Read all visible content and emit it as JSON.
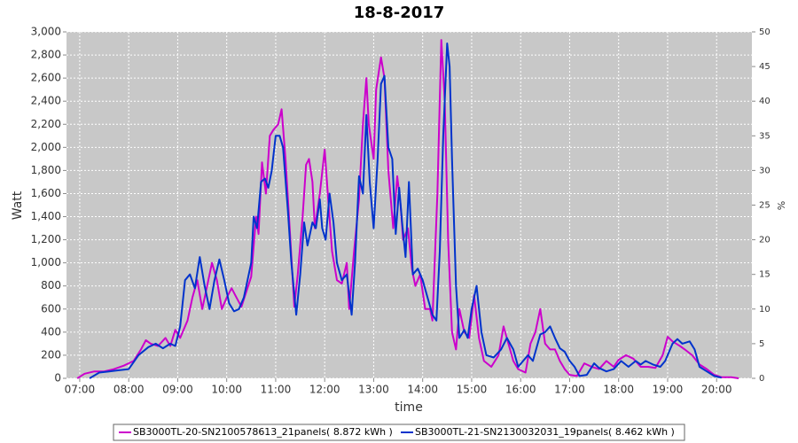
{
  "chart_data": {
    "type": "line",
    "title": "18-8-2017",
    "x_label": "time",
    "y_label": "Watt",
    "y2_label": "%",
    "xlim": [
      6.73,
      20.72
    ],
    "xticks": [
      {
        "value": 7,
        "label": "07:00"
      },
      {
        "value": 8,
        "label": "08:00"
      },
      {
        "value": 9,
        "label": "09:00"
      },
      {
        "value": 10,
        "label": "10:00"
      },
      {
        "value": 11,
        "label": "11:00"
      },
      {
        "value": 12,
        "label": "12:00"
      },
      {
        "value": 13,
        "label": "13:00"
      },
      {
        "value": 14,
        "label": "14:00"
      },
      {
        "value": 15,
        "label": "15:00"
      },
      {
        "value": 16,
        "label": "16:00"
      },
      {
        "value": 17,
        "label": "17:00"
      },
      {
        "value": 18,
        "label": "18:00"
      },
      {
        "value": 19,
        "label": "19:00"
      },
      {
        "value": 20,
        "label": "20:00"
      }
    ],
    "ylim": [
      0,
      3000
    ],
    "yticks": [
      0,
      200,
      400,
      600,
      800,
      {
        "value": 1000,
        "label": "1,000"
      },
      {
        "value": 1200,
        "label": "1,200"
      },
      {
        "value": 1400,
        "label": "1,400"
      },
      {
        "value": 1600,
        "label": "1,600"
      },
      {
        "value": 1800,
        "label": "1,800"
      },
      {
        "value": 2000,
        "label": "2,000"
      },
      {
        "value": 2200,
        "label": "2,200"
      },
      {
        "value": 2400,
        "label": "2,400"
      },
      {
        "value": 2600,
        "label": "2,600"
      },
      {
        "value": 2800,
        "label": "2,800"
      },
      {
        "value": 3000,
        "label": "3,000"
      }
    ],
    "y2lim": [
      0,
      50
    ],
    "y2ticks": [
      0,
      5,
      10,
      15,
      20,
      25,
      30,
      35,
      40,
      45,
      50
    ],
    "grid": true,
    "series": [
      {
        "name": "SB3000TL-20-SN2100578613_21panels( 8.872 kWh )",
        "color": "#cc00cc",
        "x": [
          6.95,
          7.1,
          7.3,
          7.5,
          7.7,
          7.9,
          8.1,
          8.25,
          8.35,
          8.45,
          8.6,
          8.75,
          8.85,
          8.95,
          9.05,
          9.2,
          9.3,
          9.4,
          9.5,
          9.6,
          9.7,
          9.8,
          9.9,
          10.0,
          10.1,
          10.2,
          10.3,
          10.4,
          10.5,
          10.6,
          10.65,
          10.72,
          10.8,
          10.88,
          10.95,
          11.05,
          11.12,
          11.2,
          11.3,
          11.38,
          11.45,
          11.55,
          11.62,
          11.68,
          11.75,
          11.8,
          11.9,
          12.0,
          12.08,
          12.15,
          12.25,
          12.35,
          12.45,
          12.5,
          12.6,
          12.7,
          12.78,
          12.85,
          12.9,
          13.0,
          13.05,
          13.15,
          13.22,
          13.3,
          13.4,
          13.48,
          13.55,
          13.6,
          13.7,
          13.78,
          13.85,
          13.95,
          14.05,
          14.15,
          14.2,
          14.3,
          14.38,
          14.45,
          14.52,
          14.6,
          14.68,
          14.75,
          14.85,
          14.95,
          15.05,
          15.15,
          15.25,
          15.4,
          15.55,
          15.65,
          15.75,
          15.85,
          15.95,
          16.1,
          16.2,
          16.3,
          16.4,
          16.5,
          16.6,
          16.7,
          16.8,
          16.9,
          17.0,
          17.15,
          17.3,
          17.45,
          17.6,
          17.75,
          17.9,
          18.0,
          18.15,
          18.3,
          18.45,
          18.6,
          18.75,
          18.9,
          19.0,
          19.1,
          19.25,
          19.35,
          19.5,
          19.65,
          19.8,
          19.95,
          20.1,
          20.3,
          20.45
        ],
        "values": [
          0,
          40,
          60,
          60,
          80,
          110,
          150,
          250,
          330,
          300,
          280,
          350,
          280,
          420,
          350,
          500,
          700,
          850,
          600,
          800,
          1000,
          850,
          600,
          700,
          780,
          700,
          620,
          750,
          880,
          1400,
          1250,
          1870,
          1600,
          2100,
          2150,
          2200,
          2330,
          1900,
          1200,
          620,
          900,
          1400,
          1850,
          1900,
          1700,
          1300,
          1600,
          1980,
          1500,
          1100,
          850,
          820,
          1000,
          600,
          1100,
          1550,
          2200,
          2600,
          2200,
          1900,
          2500,
          2780,
          2600,
          1800,
          1300,
          1750,
          1500,
          1200,
          1300,
          950,
          800,
          900,
          600,
          600,
          500,
          1600,
          2930,
          2400,
          1200,
          400,
          250,
          600,
          400,
          350,
          720,
          350,
          150,
          100,
          200,
          450,
          300,
          150,
          80,
          50,
          300,
          400,
          600,
          300,
          250,
          250,
          150,
          80,
          30,
          20,
          130,
          100,
          80,
          150,
          100,
          160,
          200,
          170,
          100,
          100,
          90,
          200,
          360,
          320,
          280,
          250,
          200,
          120,
          80,
          30,
          10,
          10,
          0
        ]
      },
      {
        "name": "SB3000TL-21-SN2130032031_19panels( 8.462 kWh )",
        "color": "#0033cc",
        "x": [
          7.2,
          7.4,
          7.6,
          7.8,
          8.0,
          8.2,
          8.4,
          8.55,
          8.7,
          8.85,
          8.95,
          9.05,
          9.15,
          9.25,
          9.35,
          9.45,
          9.55,
          9.65,
          9.75,
          9.85,
          9.95,
          10.05,
          10.15,
          10.25,
          10.35,
          10.5,
          10.55,
          10.62,
          10.7,
          10.78,
          10.85,
          10.92,
          11.0,
          11.08,
          11.15,
          11.25,
          11.32,
          11.42,
          11.5,
          11.58,
          11.65,
          11.75,
          11.82,
          11.9,
          11.95,
          12.02,
          12.1,
          12.18,
          12.25,
          12.35,
          12.45,
          12.55,
          12.62,
          12.7,
          12.78,
          12.85,
          12.92,
          13.0,
          13.08,
          13.15,
          13.22,
          13.3,
          13.38,
          13.45,
          13.52,
          13.58,
          13.65,
          13.72,
          13.8,
          13.9,
          14.0,
          14.1,
          14.2,
          14.28,
          14.35,
          14.42,
          14.5,
          14.55,
          14.6,
          14.68,
          14.75,
          14.85,
          14.92,
          15.0,
          15.1,
          15.2,
          15.3,
          15.45,
          15.6,
          15.72,
          15.85,
          15.95,
          16.05,
          16.15,
          16.25,
          16.4,
          16.5,
          16.6,
          16.7,
          16.8,
          16.9,
          17.0,
          17.1,
          17.2,
          17.35,
          17.5,
          17.6,
          17.75,
          17.9,
          18.05,
          18.2,
          18.35,
          18.45,
          18.55,
          18.7,
          18.85,
          18.95,
          19.1,
          19.2,
          19.3,
          19.45,
          19.55,
          19.65,
          19.8,
          19.95,
          20.1
        ],
        "values": [
          0,
          50,
          60,
          70,
          80,
          200,
          270,
          300,
          260,
          300,
          280,
          450,
          850,
          900,
          780,
          1050,
          800,
          600,
          850,
          1030,
          850,
          650,
          580,
          600,
          700,
          1000,
          1400,
          1300,
          1700,
          1730,
          1650,
          1800,
          2100,
          2100,
          2000,
          1450,
          1000,
          550,
          900,
          1350,
          1150,
          1350,
          1300,
          1550,
          1300,
          1200,
          1600,
          1350,
          1000,
          850,
          900,
          550,
          1000,
          1750,
          1600,
          2280,
          1700,
          1300,
          1900,
          2550,
          2620,
          2000,
          1900,
          1250,
          1650,
          1350,
          1050,
          1700,
          900,
          950,
          850,
          700,
          550,
          500,
          1100,
          2100,
          2900,
          2700,
          1900,
          800,
          350,
          420,
          350,
          600,
          800,
          400,
          200,
          180,
          250,
          350,
          250,
          100,
          150,
          200,
          150,
          380,
          400,
          450,
          350,
          260,
          230,
          150,
          100,
          20,
          30,
          130,
          90,
          60,
          80,
          150,
          100,
          150,
          120,
          150,
          120,
          100,
          150,
          300,
          340,
          300,
          320,
          250,
          100,
          60,
          20,
          5
        ]
      }
    ]
  }
}
